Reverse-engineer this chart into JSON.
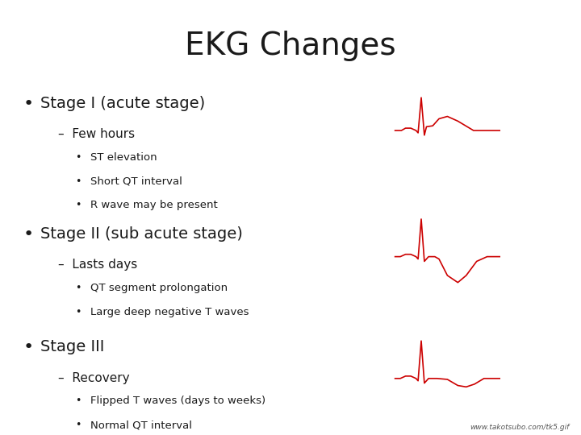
{
  "title": "EKG Changes",
  "title_fontsize": 28,
  "title_fontfamily": "DejaVu Sans",
  "bg_color": "#ffffff",
  "text_color": "#1a1a1a",
  "ekg_color": "#cc0000",
  "url_text": "www.takotsubo.com/tk5.gif",
  "bullet1_main": "Stage I (acute stage)",
  "bullet1_sub": "Few hours",
  "bullet1_items": [
    "ST elevation",
    "Short QT interval",
    "R wave may be present"
  ],
  "bullet2_main": "Stage II (sub acute stage)",
  "bullet2_sub": "Lasts days",
  "bullet2_items": [
    "QT segment prolongation",
    "Large deep negative T waves"
  ],
  "bullet3_main": "Stage III",
  "bullet3_sub": "Recovery",
  "bullet3_items": [
    "Flipped T waves (days to weeks)",
    "Normal QT interval"
  ]
}
